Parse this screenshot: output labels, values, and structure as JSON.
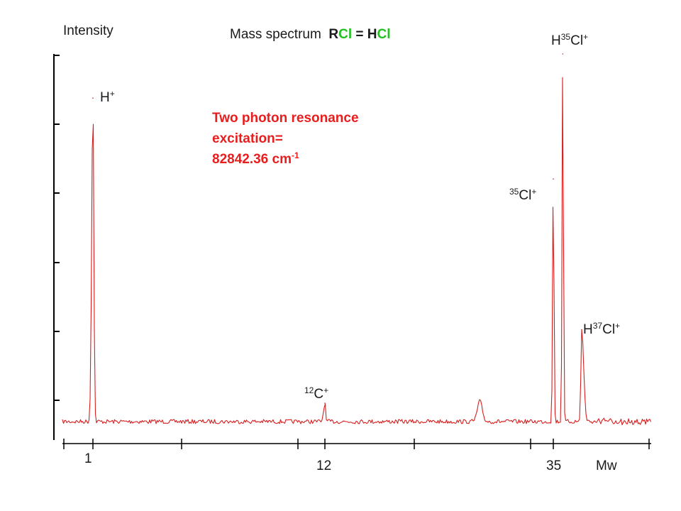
{
  "chart_data": {
    "type": "line",
    "title": "Mass spectrum",
    "title_formula": {
      "r": "R",
      "cl1": "Cl",
      "eq": " = H",
      "cl2": "Cl"
    },
    "ylabel": "Intensity",
    "xlabel": "Mw",
    "x_tick_labels": [
      "1",
      "12",
      "35"
    ],
    "annotation": {
      "line1": "Two photon resonance",
      "line2": "excitation=",
      "line3_value": "82842.36 cm",
      "line3_exp": "-1"
    },
    "peaks": [
      {
        "mass": 1,
        "relative_intensity": 0.88,
        "label_base": "H",
        "label_sup": "+"
      },
      {
        "mass": 12,
        "relative_intensity": 0.05,
        "label_pre_sup": "12",
        "label_base": "C",
        "label_sup": "+"
      },
      {
        "mass": 35,
        "relative_intensity": 0.66,
        "label_pre_sup": "35",
        "label_base": "Cl",
        "label_sup": "+"
      },
      {
        "mass": 36,
        "relative_intensity": 1.0,
        "label_base": "H",
        "label_mid_sup": "35",
        "label_end": "Cl",
        "label_sup": "+"
      },
      {
        "mass": 38,
        "relative_intensity": 0.25,
        "label_base": "H",
        "label_mid_sup": "37",
        "label_end": "Cl",
        "label_sup": "+"
      }
    ],
    "colors": {
      "trace": "#d81e1e",
      "title_cl": "#22c022",
      "annotation": "#e81e1e",
      "axis": "#000000"
    },
    "grid": false
  }
}
